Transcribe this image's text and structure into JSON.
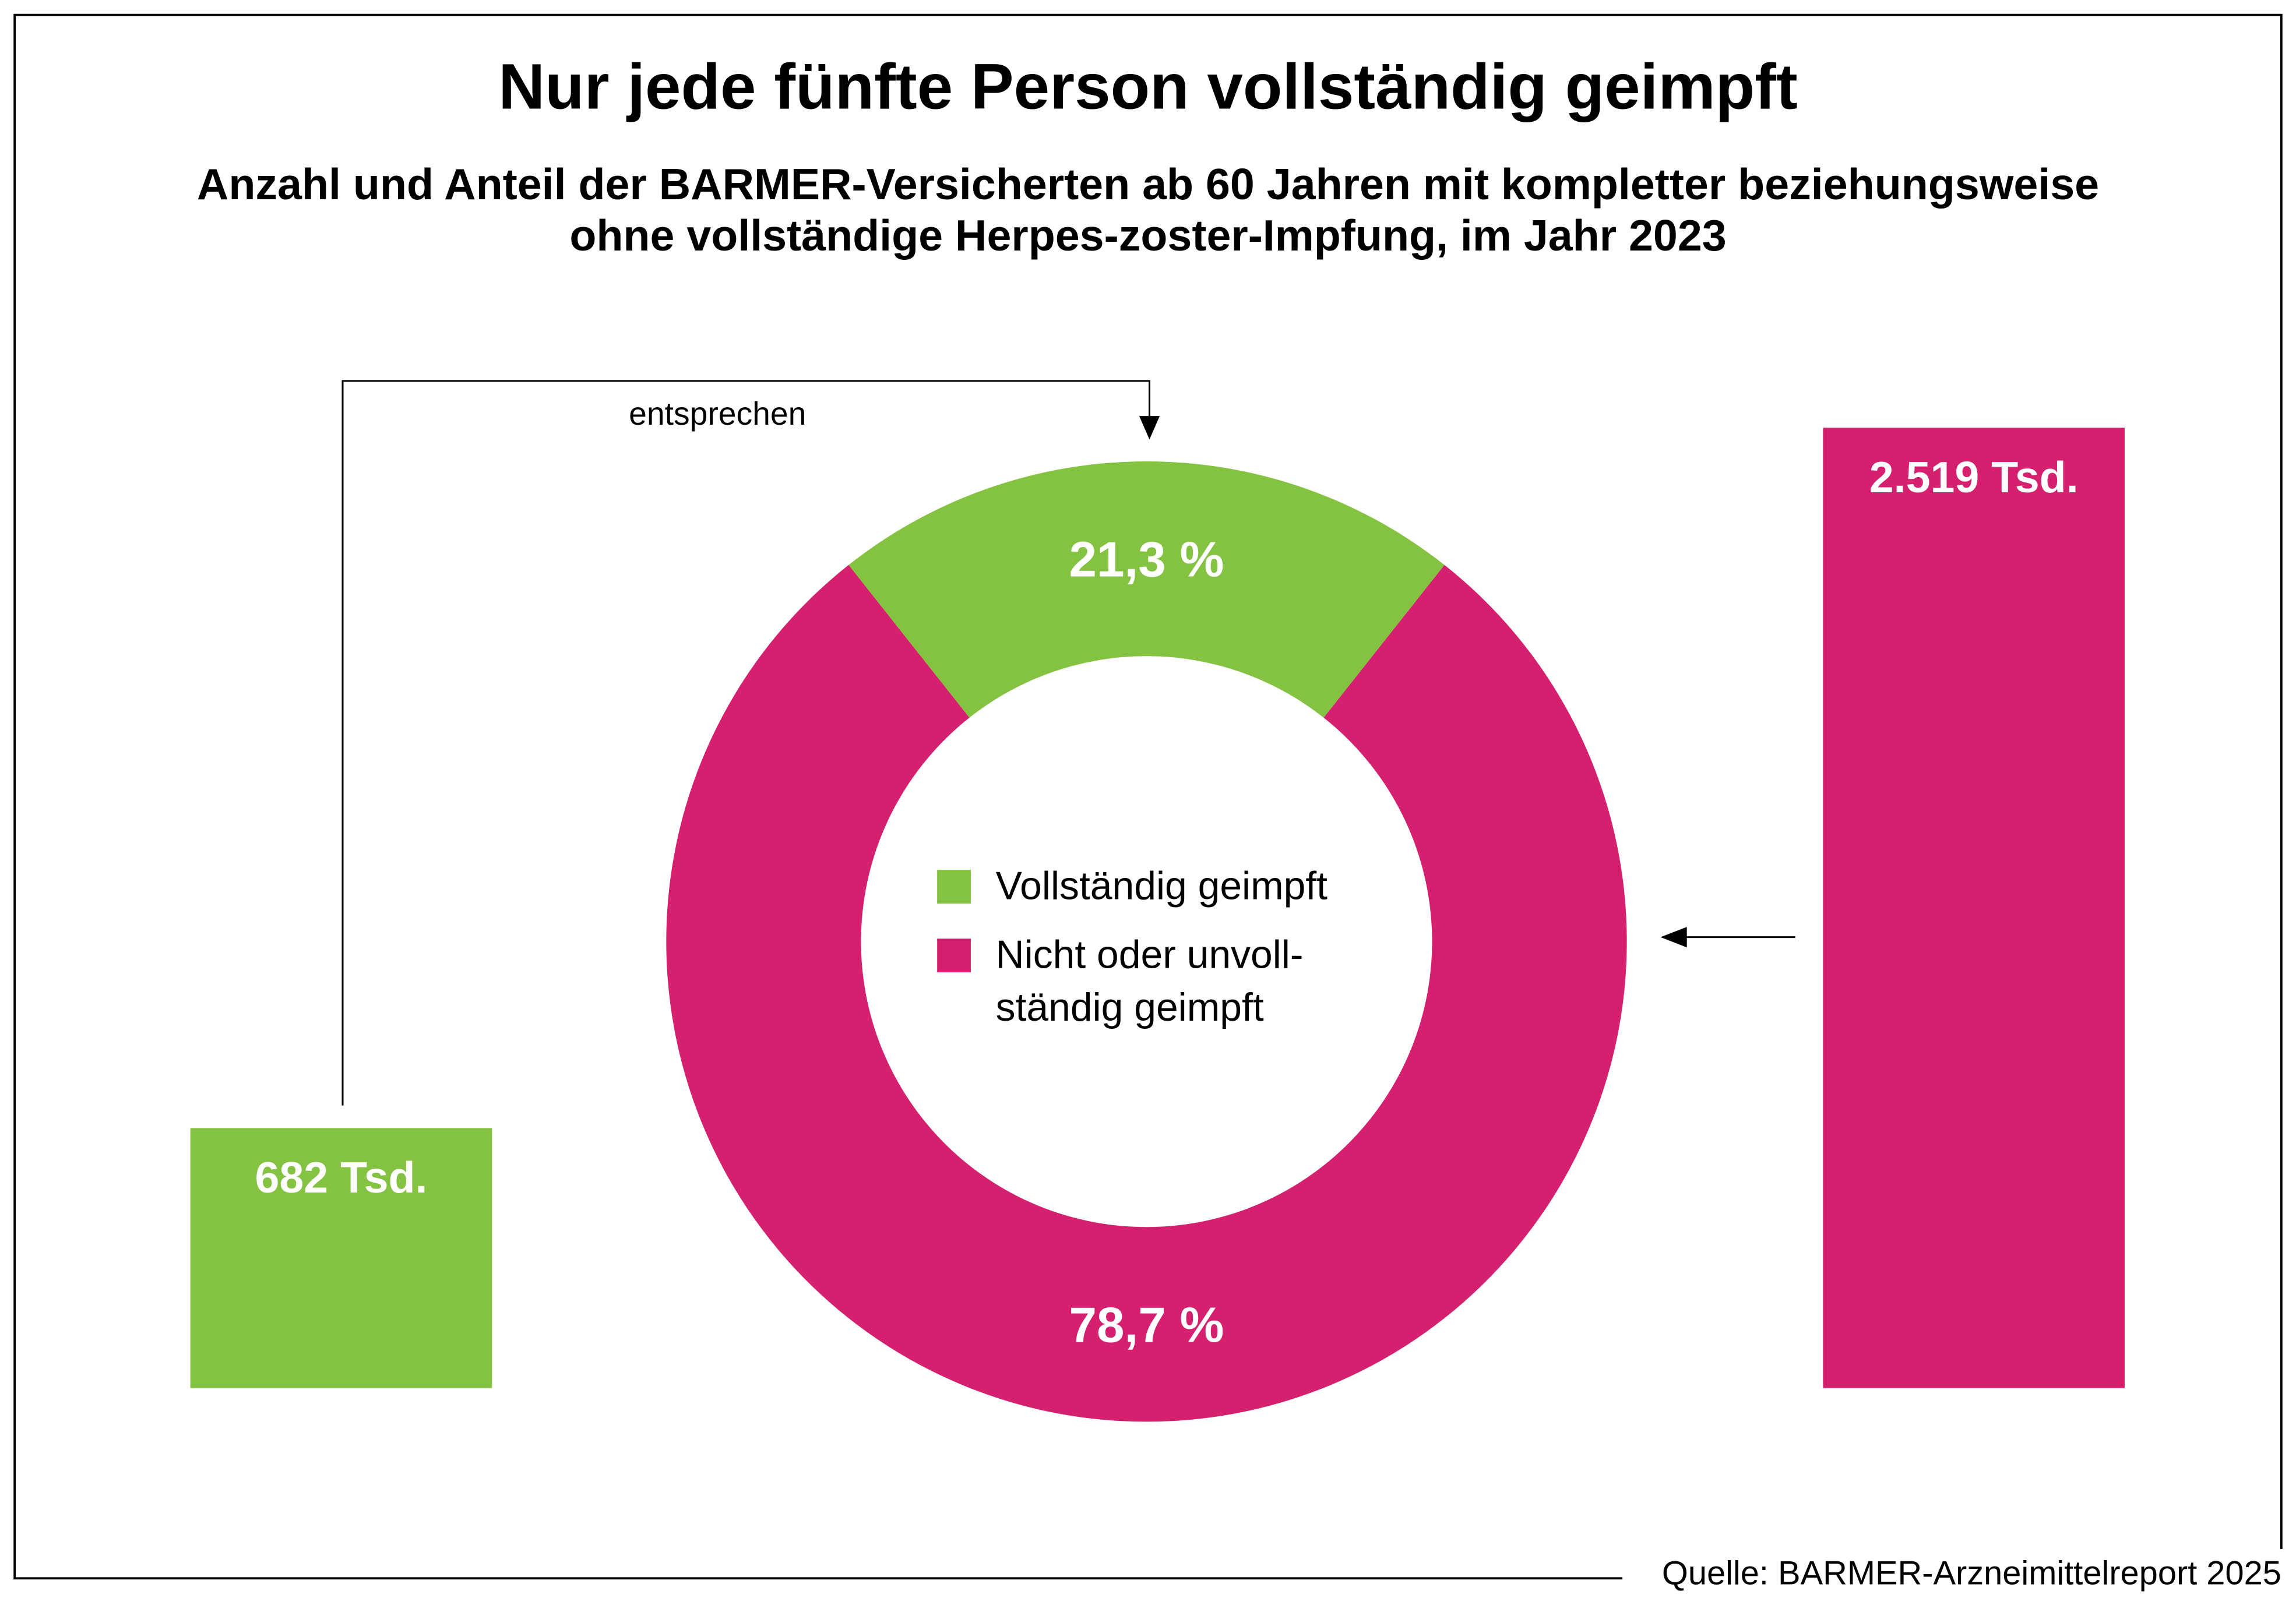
{
  "chart_data": {
    "type": "pie",
    "variant": "donut",
    "title": "Nur jede fünfte Person vollständig geimpft",
    "subtitle_lines": [
      "Anzahl und Anteil der BARMER-Versicherten ab 60 Jahren mit kompletter beziehungsweise",
      "ohne vollständige Herpes-zoster-Impfung, im Jahr 2023"
    ],
    "slices": [
      {
        "name": "Vollständig geimpft",
        "legend_lines": [
          "Vollständig geimpft"
        ],
        "value": 21.3,
        "label": "21,3 %",
        "color": "#84C341",
        "count": 682,
        "count_label": "682 Tsd."
      },
      {
        "name": "Nicht oder unvollständig geimpft",
        "legend_lines": [
          "Nicht oder unvoll-",
          "ständig geimpft"
        ],
        "value": 78.7,
        "label": "78,7 %",
        "color": "#D4206E",
        "count": 2519,
        "count_label": "2.519 Tsd."
      }
    ],
    "connector_label": "entsprechen",
    "source": "Quelle: BARMER-Arzneimittelreport 2025"
  }
}
